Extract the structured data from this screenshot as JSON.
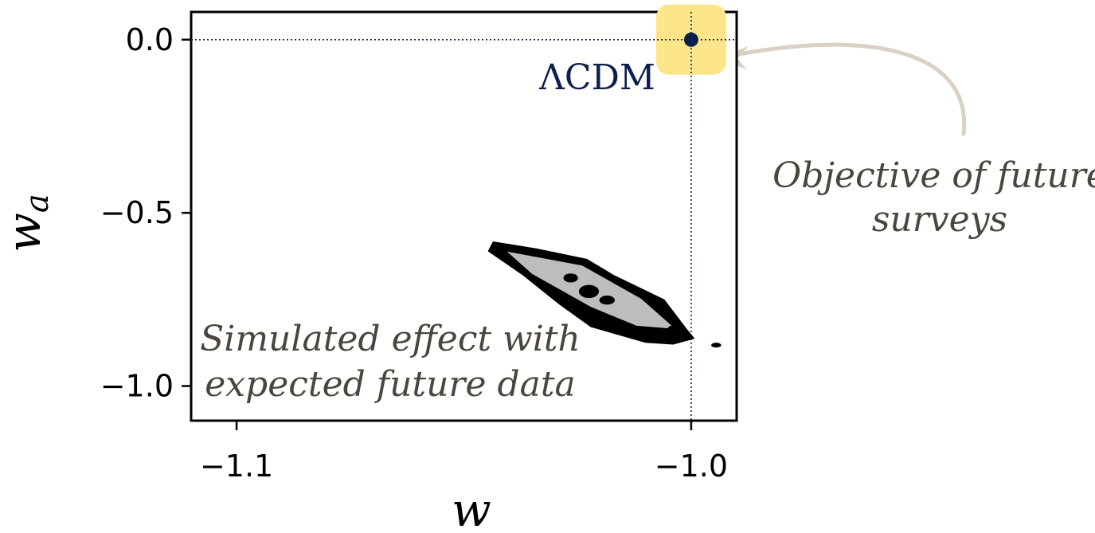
{
  "chart_data": {
    "type": "scatter",
    "title": "",
    "xlabel": "w",
    "ylabel": "w",
    "ylabel_subscript": "a",
    "xlim": [
      -1.11,
      -0.99
    ],
    "ylim": [
      -1.1,
      0.08
    ],
    "xticks": [
      {
        "value": -1.1,
        "label": "−1.1"
      },
      {
        "value": -1.0,
        "label": "−1.0"
      }
    ],
    "yticks": [
      {
        "value": 0.0,
        "label": "0.0"
      },
      {
        "value": -0.5,
        "label": "−0.5"
      },
      {
        "value": -1.0,
        "label": "−1.0"
      }
    ],
    "reference_point": {
      "name": "ΛCDM",
      "x": -1.0,
      "y": 0.0,
      "color": "#0d1f4d",
      "highlight_color": "#fde68a"
    },
    "contour": {
      "name": "Simulated effect with expected future data",
      "outline_color": "#000000",
      "fill_color": "#bdbdbd",
      "outer_polygon": [
        [
          -1.0435,
          -0.585
        ],
        [
          -1.034,
          -0.605
        ],
        [
          -1.023,
          -0.635
        ],
        [
          -1.017,
          -0.682
        ],
        [
          -1.006,
          -0.752
        ],
        [
          -1.001,
          -0.838
        ],
        [
          -0.9995,
          -0.862
        ],
        [
          -1.004,
          -0.878
        ],
        [
          -1.01,
          -0.873
        ],
        [
          -1.022,
          -0.828
        ],
        [
          -1.029,
          -0.762
        ],
        [
          -1.037,
          -0.678
        ],
        [
          -1.0445,
          -0.61
        ]
      ],
      "inner_polygon": [
        [
          -1.0405,
          -0.612
        ],
        [
          -1.024,
          -0.652
        ],
        [
          -1.011,
          -0.748
        ],
        [
          -1.0035,
          -0.835
        ],
        [
          -1.012,
          -0.826
        ],
        [
          -1.022,
          -0.772
        ],
        [
          -1.035,
          -0.676
        ]
      ],
      "blobs": [
        {
          "x": -1.0265,
          "y": -0.688,
          "rx": 0.0016,
          "ry": 0.013
        },
        {
          "x": -1.0225,
          "y": -0.727,
          "rx": 0.0022,
          "ry": 0.019
        },
        {
          "x": -1.0185,
          "y": -0.752,
          "rx": 0.0017,
          "ry": 0.013
        },
        {
          "x": -1.004,
          "y": -0.833,
          "rx": 0.0011,
          "ry": 0.008
        },
        {
          "x": -0.9945,
          "y": -0.882,
          "rx": 0.0011,
          "ry": 0.007
        }
      ]
    },
    "annotations": [
      {
        "id": "objective",
        "lines": [
          "Objective of future",
          "surveys"
        ],
        "color": "#4a463e",
        "arrow_color": "#d8d1c4"
      },
      {
        "id": "simulated",
        "lines": [
          "Simulated effect with",
          "expected future data"
        ],
        "color": "#4a463e",
        "arrow_color": "#d8d1c4"
      }
    ]
  }
}
